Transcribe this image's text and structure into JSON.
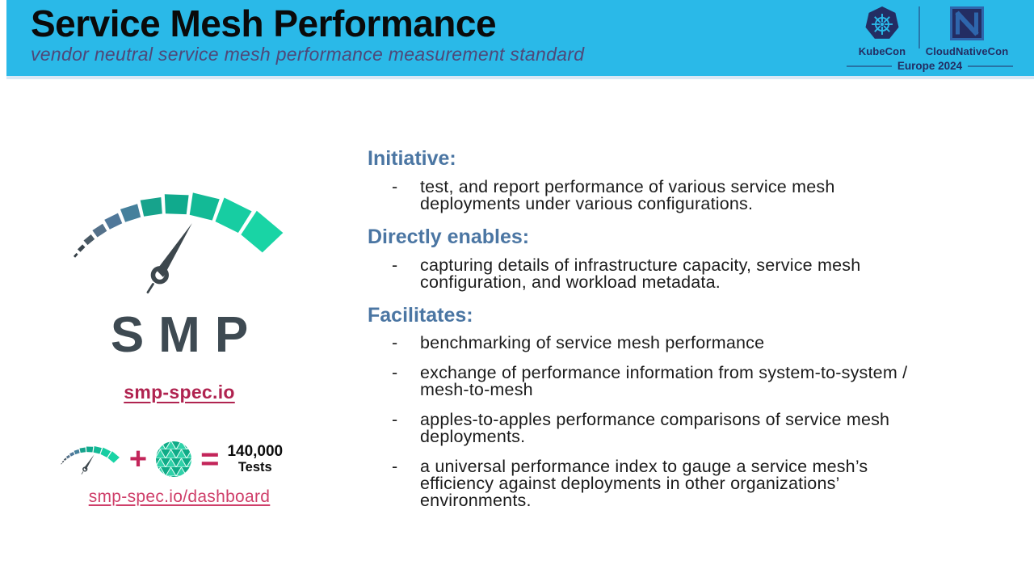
{
  "slide": {
    "title": "Service Mesh Performance",
    "subtitle": "vendor neutral service mesh performance measurement standard"
  },
  "event_badge": {
    "kubecon_label": "KubeCon",
    "cloudnativecon_label": "CloudNativeCon",
    "edition": "Europe 2024"
  },
  "left_panel": {
    "wordmark": "SMP",
    "site_link": "smp-spec.io",
    "dashboard_link": "smp-spec.io/dashboard",
    "equation": {
      "plus": "+",
      "equals": "=",
      "result_value": "140,000",
      "result_unit": "Tests"
    }
  },
  "bullet_marker": "-",
  "sections": [
    {
      "heading": "Initiative:",
      "bullets": [
        "test, and report performance of various service mesh\ndeployments under various configurations."
      ]
    },
    {
      "heading": "Directly enables:",
      "bullets": [
        "capturing details of infrastructure capacity, service mesh\nconfiguration, and workload metadata."
      ]
    },
    {
      "heading": "Facilitates:",
      "bullets": [
        "benchmarking of service mesh performance",
        "exchange of performance information from system-to-system /\nmesh-to-mesh",
        "apples-to-apples performance comparisons of service mesh\ndeployments.",
        "a universal performance index to gauge a service mesh’s\nefficiency against deployments in other organizations’\nenvironments."
      ]
    }
  ],
  "colors": {
    "header_background": "#2ab9e8",
    "header_underline": "#d9e8f5",
    "title_text": "#0a0a0a",
    "subtitle_text": "#4e4879",
    "section_heading": "#4b76a3",
    "body_text": "#1c1c1c",
    "link_primary": "#b02350",
    "link_secondary": "#cf3f6a",
    "equation_symbol": "#c3255a",
    "event_navy": "#232d63",
    "wordmark_gray": "#3e4a52",
    "mesh_sphere_base": "#10ab87",
    "mesh_sphere_light": "#2ed1a8",
    "gauge_needle": "#3d474d",
    "gauge_segments": [
      "#343e45",
      "#3a454d",
      "#4a5a66",
      "#54718a",
      "#50789a",
      "#45809c",
      "#17a38c",
      "#10aa8d",
      "#13ba96",
      "#17cda2",
      "#19d4a5"
    ]
  }
}
